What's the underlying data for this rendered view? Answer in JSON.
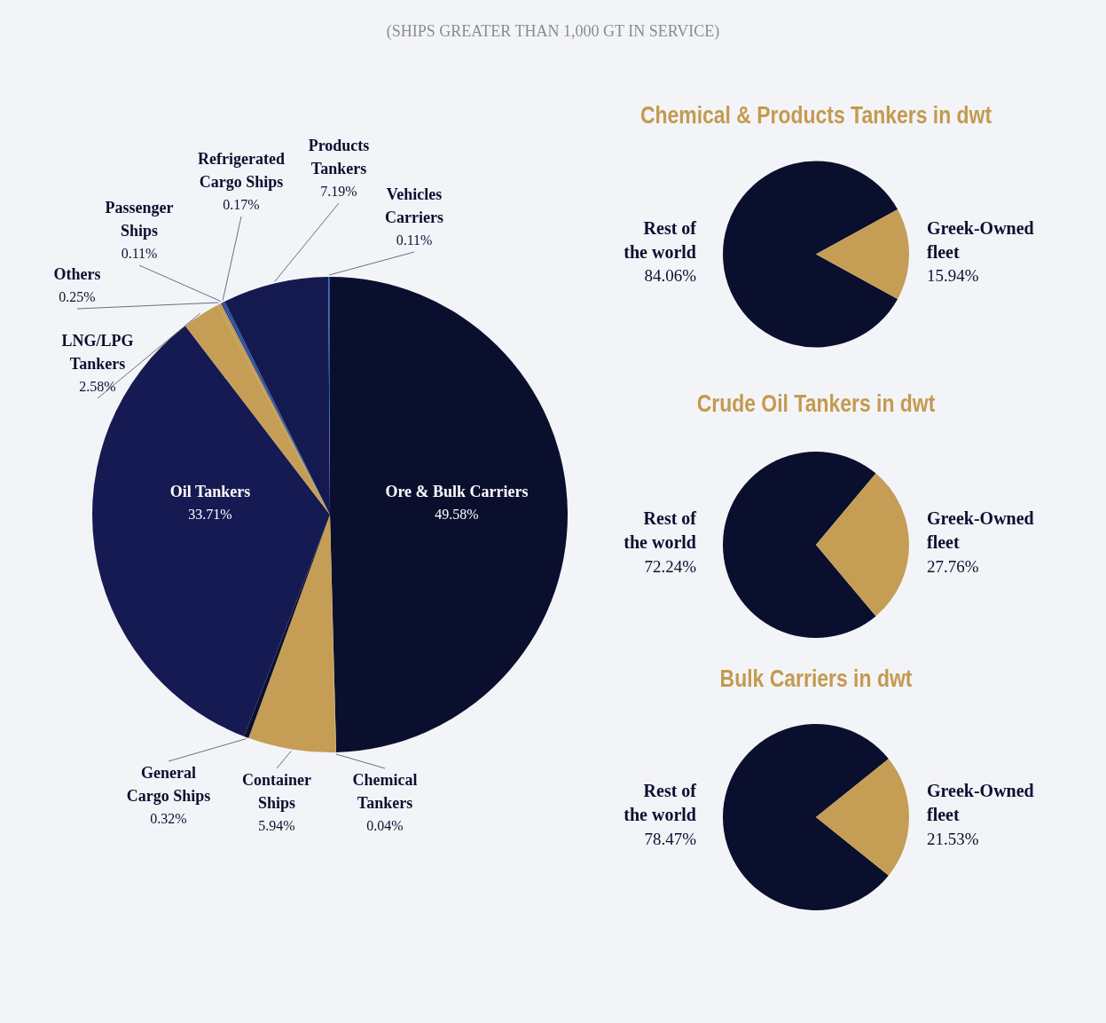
{
  "chart_data": [
    {
      "type": "pie",
      "title": "(SHIPS GREATER THAN 1,000 GT IN SERVICE)",
      "categories": [
        "Ore & Bulk Carriers",
        "Chemical Tankers",
        "Container Ships",
        "General Cargo Ships",
        "Oil Tankers",
        "LNG/LPG Tankers",
        "Others",
        "Passenger Ships",
        "Refrigerated Cargo Ships",
        "Products Tankers",
        "Vehicles Carriers"
      ],
      "values": [
        49.58,
        0.04,
        5.94,
        0.32,
        33.71,
        2.58,
        0.25,
        0.11,
        0.17,
        7.19,
        0.11
      ],
      "value_labels": [
        "49.58%",
        "0.04%",
        "5.94%",
        "0.32%",
        "33.71%",
        "2.58%",
        "0.25%",
        "0.11%",
        "0.17%",
        "7.19%",
        "0.11%"
      ],
      "colors": [
        "#0b0f2e",
        "#c59d54",
        "#c59d54",
        "#0b0f2e",
        "#161a52",
        "#c59d54",
        "#c59d54",
        "#1f3f8a",
        "#2a4f9c",
        "#141a4f",
        "#2b57a8"
      ]
    },
    {
      "type": "pie",
      "title": "Chemical & Products Tankers in dwt",
      "categories": [
        "Rest of the world",
        "Greek-Owned fleet"
      ],
      "values": [
        84.06,
        15.94
      ],
      "value_labels": [
        "84.06%",
        "15.94%"
      ],
      "colors": [
        "#0b0f2e",
        "#c59d54"
      ]
    },
    {
      "type": "pie",
      "title": "Crude Oil Tankers in dwt",
      "categories": [
        "Rest of the world",
        "Greek-Owned fleet"
      ],
      "values": [
        72.24,
        27.76
      ],
      "value_labels": [
        "72.24%",
        "27.76%"
      ],
      "colors": [
        "#0b0f2e",
        "#c59d54"
      ]
    },
    {
      "type": "pie",
      "title": "Bulk Carriers in dwt",
      "categories": [
        "Rest of the world",
        "Greek-Owned fleet"
      ],
      "values": [
        78.47,
        21.53
      ],
      "value_labels": [
        "78.47%",
        "21.53%"
      ],
      "colors": [
        "#0b0f2e",
        "#c59d54"
      ]
    }
  ]
}
